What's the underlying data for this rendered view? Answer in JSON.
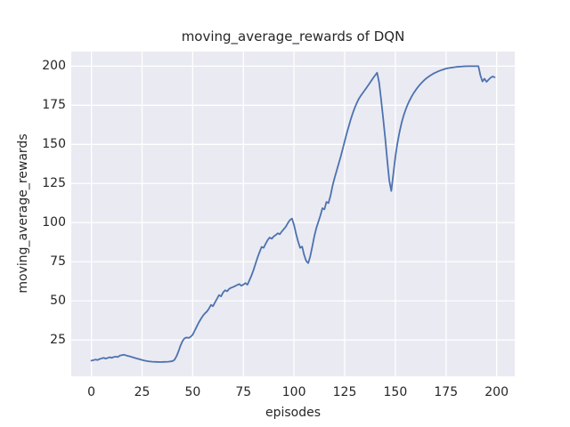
{
  "figure": {
    "kind": "matplotlib-seaborn-figure"
  },
  "chart_data": {
    "type": "line",
    "title": "moving_average_rewards of DQN",
    "xlabel": "episodes",
    "ylabel": "moving_average_rewards",
    "x_ticks": [
      0,
      25,
      50,
      75,
      100,
      125,
      150,
      175,
      200
    ],
    "y_ticks": [
      25,
      50,
      75,
      100,
      125,
      150,
      175,
      200
    ],
    "xlim": [
      -9.95,
      208.95
    ],
    "ylim": [
      1.8,
      209.3
    ],
    "grid": true,
    "legend": false,
    "theme": {
      "axes_background": "#eaeaf2",
      "grid_color": "#ffffff",
      "line_color": "#4c72b0",
      "text_color": "#262626",
      "figure_background": "#ffffff"
    },
    "series": [
      {
        "name": "moving_average_rewards",
        "points": [
          [
            0,
            11.8
          ],
          [
            1,
            12.1
          ],
          [
            2,
            12.5
          ],
          [
            3,
            12.2
          ],
          [
            4,
            12.8
          ],
          [
            5,
            13.2
          ],
          [
            6,
            13.6
          ],
          [
            7,
            13.1
          ],
          [
            8,
            13.5
          ],
          [
            9,
            14.0
          ],
          [
            10,
            13.6
          ],
          [
            11,
            14.1
          ],
          [
            12,
            14.4
          ],
          [
            13,
            14.1
          ],
          [
            14,
            15.0
          ],
          [
            15,
            15.3
          ],
          [
            16,
            15.6
          ],
          [
            17,
            15.2
          ],
          [
            18,
            14.8
          ],
          [
            19,
            14.5
          ],
          [
            20,
            14.1
          ],
          [
            22,
            13.3
          ],
          [
            24,
            12.6
          ],
          [
            26,
            11.9
          ],
          [
            28,
            11.4
          ],
          [
            30,
            11.1
          ],
          [
            32,
            11.0
          ],
          [
            34,
            10.9
          ],
          [
            36,
            11.0
          ],
          [
            38,
            11.1
          ],
          [
            40,
            11.5
          ],
          [
            41,
            12.3
          ],
          [
            42,
            14.6
          ],
          [
            43,
            17.8
          ],
          [
            44,
            21.5
          ],
          [
            45,
            24.4
          ],
          [
            46,
            26.1
          ],
          [
            47,
            26.6
          ],
          [
            48,
            26.3
          ],
          [
            49,
            27.1
          ],
          [
            50,
            28.4
          ],
          [
            51,
            31.0
          ],
          [
            52,
            33.6
          ],
          [
            53,
            36.2
          ],
          [
            54,
            38.4
          ],
          [
            55,
            40.4
          ],
          [
            56,
            42.0
          ],
          [
            57,
            43.2
          ],
          [
            58,
            45.0
          ],
          [
            59,
            47.4
          ],
          [
            60,
            46.6
          ],
          [
            61,
            49.0
          ],
          [
            62,
            51.4
          ],
          [
            63,
            53.7
          ],
          [
            64,
            52.9
          ],
          [
            65,
            55.4
          ],
          [
            66,
            56.8
          ],
          [
            67,
            56.1
          ],
          [
            68,
            57.7
          ],
          [
            69,
            58.4
          ],
          [
            70,
            58.9
          ],
          [
            71,
            59.5
          ],
          [
            72,
            60.2
          ],
          [
            73,
            60.7
          ],
          [
            74,
            59.7
          ],
          [
            75,
            60.4
          ],
          [
            76,
            61.4
          ],
          [
            77,
            60.3
          ],
          [
            78,
            63.2
          ],
          [
            79,
            66.2
          ],
          [
            80,
            69.7
          ],
          [
            81,
            73.7
          ],
          [
            82,
            77.7
          ],
          [
            83,
            81.2
          ],
          [
            84,
            84.5
          ],
          [
            85,
            83.9
          ],
          [
            86,
            86.5
          ],
          [
            87,
            88.9
          ],
          [
            88,
            90.5
          ],
          [
            89,
            89.7
          ],
          [
            90,
            91.2
          ],
          [
            91,
            92.1
          ],
          [
            92,
            93.2
          ],
          [
            93,
            92.6
          ],
          [
            94,
            94.4
          ],
          [
            95,
            95.9
          ],
          [
            96,
            97.5
          ],
          [
            97,
            99.8
          ],
          [
            98,
            101.7
          ],
          [
            99,
            102.6
          ],
          [
            100,
            98.5
          ],
          [
            101,
            92.9
          ],
          [
            102,
            88.0
          ],
          [
            103,
            83.9
          ],
          [
            104,
            84.7
          ],
          [
            105,
            79.3
          ],
          [
            106,
            75.5
          ],
          [
            107,
            74.1
          ],
          [
            108,
            78.5
          ],
          [
            109,
            84.6
          ],
          [
            110,
            91.2
          ],
          [
            111,
            96.5
          ],
          [
            112,
            100.5
          ],
          [
            113,
            104.5
          ],
          [
            114,
            109.2
          ],
          [
            115,
            108.5
          ],
          [
            116,
            113.2
          ],
          [
            117,
            112.5
          ],
          [
            118,
            117.2
          ],
          [
            119,
            123.5
          ],
          [
            120,
            128.5
          ],
          [
            121,
            133.0
          ],
          [
            122,
            137.5
          ],
          [
            123,
            142.0
          ],
          [
            124,
            147.0
          ],
          [
            125,
            152.0
          ],
          [
            126,
            157.0
          ],
          [
            127,
            161.5
          ],
          [
            128,
            166.0
          ],
          [
            129,
            170.0
          ],
          [
            130,
            173.5
          ],
          [
            131,
            176.5
          ],
          [
            132,
            179.2
          ],
          [
            133,
            181.2
          ],
          [
            134,
            183.0
          ],
          [
            135,
            184.8
          ],
          [
            136,
            186.6
          ],
          [
            137,
            188.5
          ],
          [
            138,
            190.4
          ],
          [
            139,
            192.3
          ],
          [
            140,
            194.1
          ],
          [
            141,
            195.8
          ],
          [
            142,
            189.5
          ],
          [
            143,
            178.5
          ],
          [
            144,
            166.5
          ],
          [
            145,
            154.0
          ],
          [
            146,
            140.0
          ],
          [
            147,
            127.0
          ],
          [
            148,
            120.2
          ],
          [
            149,
            131.0
          ],
          [
            150,
            142.0
          ],
          [
            151,
            150.5
          ],
          [
            152,
            157.5
          ],
          [
            153,
            163.3
          ],
          [
            154,
            168.0
          ],
          [
            155,
            171.9
          ],
          [
            156,
            175.2
          ],
          [
            157,
            178.0
          ],
          [
            158,
            180.5
          ],
          [
            159,
            182.7
          ],
          [
            160,
            184.6
          ],
          [
            161,
            186.4
          ],
          [
            162,
            188.0
          ],
          [
            163,
            189.4
          ],
          [
            164,
            190.7
          ],
          [
            165,
            191.9
          ],
          [
            166,
            192.9
          ],
          [
            167,
            193.8
          ],
          [
            168,
            194.6
          ],
          [
            169,
            195.4
          ],
          [
            170,
            196.0
          ],
          [
            171,
            196.6
          ],
          [
            172,
            197.1
          ],
          [
            173,
            197.6
          ],
          [
            174,
            198.0
          ],
          [
            175,
            198.4
          ],
          [
            176,
            198.7
          ],
          [
            177,
            198.9
          ],
          [
            178,
            199.1
          ],
          [
            179,
            199.3
          ],
          [
            180,
            199.5
          ],
          [
            181,
            199.6
          ],
          [
            182,
            199.7
          ],
          [
            183,
            199.8
          ],
          [
            184,
            199.9
          ],
          [
            185,
            199.9
          ],
          [
            186,
            200.0
          ],
          [
            187,
            200.0
          ],
          [
            188,
            200.0
          ],
          [
            189,
            200.0
          ],
          [
            190,
            200.0
          ],
          [
            191,
            200.0
          ],
          [
            192,
            194.0
          ],
          [
            193,
            190.2
          ],
          [
            194,
            192.0
          ],
          [
            195,
            190.0
          ],
          [
            196,
            191.3
          ],
          [
            197,
            192.6
          ],
          [
            198,
            193.4
          ],
          [
            199,
            192.9
          ]
        ]
      }
    ]
  }
}
